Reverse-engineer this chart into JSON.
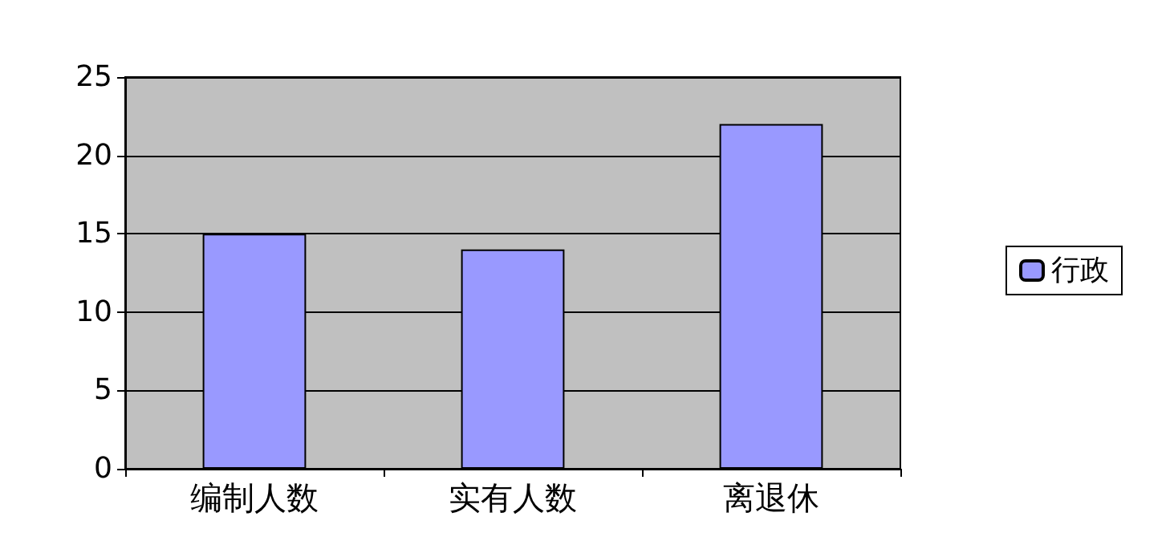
{
  "chart_data": {
    "type": "bar",
    "categories": [
      "编制人数",
      "实有人数",
      "离退休"
    ],
    "series": [
      {
        "name": "行政",
        "color": "#9999ff",
        "values": [
          15,
          14,
          22
        ]
      }
    ],
    "ylim": [
      0,
      25
    ],
    "yticks": [
      0,
      5,
      10,
      15,
      20,
      25
    ],
    "grid": "y",
    "legend": "right"
  }
}
